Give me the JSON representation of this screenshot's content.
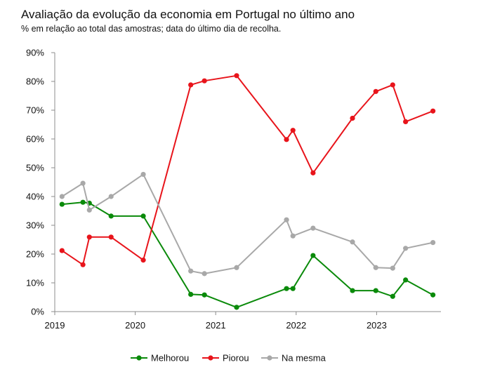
{
  "title": "Avaliação da evolução da economia em Portugal no último ano",
  "subtitle": "% em relação ao total das amostras; data do último dia de recolha.",
  "chart_data": {
    "type": "line",
    "title": "Avaliação da evolução da economia em Portugal no último ano",
    "subtitle": "% em relação ao total das amostras; data do último dia de recolha.",
    "xlabel": "",
    "ylabel": "",
    "x_ticks": [
      "2019",
      "2020",
      "2021",
      "2022",
      "2023"
    ],
    "y_ticks": [
      "0%",
      "10%",
      "20%",
      "30%",
      "40%",
      "50%",
      "60%",
      "70%",
      "80%",
      "90%"
    ],
    "xlim": [
      2019.0,
      2023.77
    ],
    "ylim": [
      0,
      90
    ],
    "grid": false,
    "legend_position": "bottom",
    "series": [
      {
        "name": "Melhorou",
        "color": "#0a8a0a",
        "points": [
          {
            "x": 2019.09,
            "y": 37.3
          },
          {
            "x": 2019.35,
            "y": 38.0
          },
          {
            "x": 2019.43,
            "y": 37.7
          },
          {
            "x": 2019.7,
            "y": 33.2
          },
          {
            "x": 2020.1,
            "y": 33.2
          },
          {
            "x": 2020.69,
            "y": 6.0
          },
          {
            "x": 2020.86,
            "y": 5.8
          },
          {
            "x": 2021.26,
            "y": 1.5
          },
          {
            "x": 2021.88,
            "y": 8.0
          },
          {
            "x": 2021.96,
            "y": 8.0
          },
          {
            "x": 2022.21,
            "y": 19.5
          },
          {
            "x": 2022.7,
            "y": 7.3
          },
          {
            "x": 2022.99,
            "y": 7.3
          },
          {
            "x": 2023.2,
            "y": 5.3
          },
          {
            "x": 2023.36,
            "y": 11.0
          },
          {
            "x": 2023.7,
            "y": 5.8
          }
        ]
      },
      {
        "name": "Piorou",
        "color": "#e8141b",
        "points": [
          {
            "x": 2019.09,
            "y": 21.2
          },
          {
            "x": 2019.35,
            "y": 16.3
          },
          {
            "x": 2019.43,
            "y": 25.9
          },
          {
            "x": 2019.7,
            "y": 25.9
          },
          {
            "x": 2020.1,
            "y": 17.9
          },
          {
            "x": 2020.69,
            "y": 78.8
          },
          {
            "x": 2020.86,
            "y": 80.2
          },
          {
            "x": 2021.26,
            "y": 82.0
          },
          {
            "x": 2021.88,
            "y": 59.8
          },
          {
            "x": 2021.96,
            "y": 63.0
          },
          {
            "x": 2022.21,
            "y": 48.2
          },
          {
            "x": 2022.7,
            "y": 67.2
          },
          {
            "x": 2022.99,
            "y": 76.5
          },
          {
            "x": 2023.2,
            "y": 78.8
          },
          {
            "x": 2023.36,
            "y": 66.0
          },
          {
            "x": 2023.7,
            "y": 69.7
          }
        ]
      },
      {
        "name": "Na mesma",
        "color": "#a8a8a8",
        "points": [
          {
            "x": 2019.09,
            "y": 40.0
          },
          {
            "x": 2019.35,
            "y": 44.6
          },
          {
            "x": 2019.43,
            "y": 35.3
          },
          {
            "x": 2019.7,
            "y": 40.0
          },
          {
            "x": 2020.1,
            "y": 47.7
          },
          {
            "x": 2020.69,
            "y": 14.1
          },
          {
            "x": 2020.86,
            "y": 13.2
          },
          {
            "x": 2021.26,
            "y": 15.3
          },
          {
            "x": 2021.88,
            "y": 31.9
          },
          {
            "x": 2021.96,
            "y": 26.3
          },
          {
            "x": 2022.21,
            "y": 29.0
          },
          {
            "x": 2022.7,
            "y": 24.2
          },
          {
            "x": 2022.99,
            "y": 15.3
          },
          {
            "x": 2023.2,
            "y": 15.1
          },
          {
            "x": 2023.36,
            "y": 22.0
          },
          {
            "x": 2023.7,
            "y": 24.0
          }
        ]
      }
    ]
  }
}
